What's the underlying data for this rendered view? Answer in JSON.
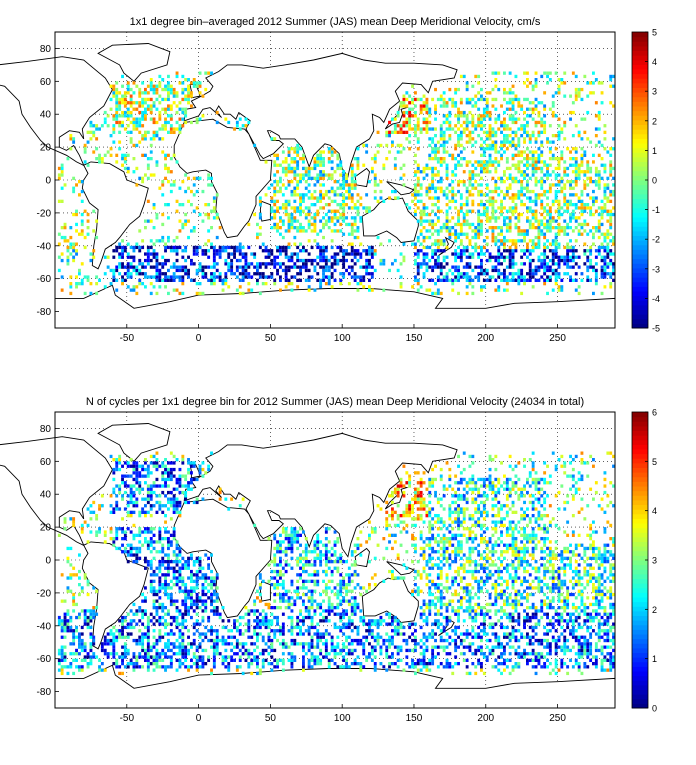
{
  "chart_data": [
    {
      "type": "heatmap",
      "title": "1x1 degree bin–averaged 2012 Summer (JAS) mean Deep Meridional Velocity, cm/s",
      "xlabel": "",
      "ylabel": "",
      "xlim": [
        -100,
        290
      ],
      "ylim": [
        -90,
        90
      ],
      "x_ticks": [
        -50,
        0,
        50,
        100,
        150,
        200,
        250
      ],
      "y_ticks": [
        -80,
        -60,
        -40,
        -20,
        0,
        20,
        40,
        60,
        80
      ],
      "grid": true,
      "colorbar": {
        "min": -5,
        "max": 5,
        "ticks": [
          -5,
          -4,
          -3,
          -2,
          -1,
          0,
          1,
          2,
          3,
          4,
          5
        ],
        "colormap": "jet"
      },
      "regions": [
        {
          "lon": [
            140,
            160
          ],
          "lat": [
            30,
            40
          ],
          "value": 4.5
        },
        {
          "lon": [
            130,
            160
          ],
          "lat": [
            30,
            50
          ],
          "value": 1.5
        },
        {
          "lon": [
            160,
            240
          ],
          "lat": [
            10,
            50
          ],
          "value": 0
        },
        {
          "lon": [
            -60,
            0
          ],
          "lat": [
            30,
            60
          ],
          "value": 0.5
        },
        {
          "lon": [
            20,
            120
          ],
          "lat": [
            -60,
            -40
          ],
          "value": -4
        },
        {
          "lon": [
            150,
            290
          ],
          "lat": [
            -60,
            -40
          ],
          "value": -3
        },
        {
          "lon": [
            -60,
            20
          ],
          "lat": [
            -60,
            -40
          ],
          "value": -3.5
        },
        {
          "lon": [
            150,
            290
          ],
          "lat": [
            -40,
            10
          ],
          "value": 0
        },
        {
          "lon": [
            50,
            110
          ],
          "lat": [
            -30,
            20
          ],
          "value": 0
        }
      ]
    },
    {
      "type": "heatmap",
      "title": "N of cycles per 1x1 degree bin for 2012 Summer (JAS) mean Deep Meridional Velocity (24034 in total)",
      "xlabel": "",
      "ylabel": "",
      "xlim": [
        -100,
        290
      ],
      "ylim": [
        -90,
        90
      ],
      "x_ticks": [
        -50,
        0,
        50,
        100,
        150,
        200,
        250
      ],
      "y_ticks": [
        -80,
        -60,
        -40,
        -20,
        0,
        20,
        40,
        60,
        80
      ],
      "grid": true,
      "colorbar": {
        "min": 0,
        "max": 6,
        "ticks": [
          0,
          1,
          2,
          3,
          4,
          5,
          6
        ],
        "colormap": "jet"
      },
      "regions": [
        {
          "lon": [
            130,
            170
          ],
          "lat": [
            25,
            50
          ],
          "value": 4
        },
        {
          "lon": [
            160,
            240
          ],
          "lat": [
            10,
            50
          ],
          "value": 2.5
        },
        {
          "lon": [
            -60,
            0
          ],
          "lat": [
            30,
            60
          ],
          "value": 1.5
        },
        {
          "lon": [
            -100,
            290
          ],
          "lat": [
            -65,
            -30
          ],
          "value": 1.5
        },
        {
          "lon": [
            -60,
            20
          ],
          "lat": [
            -30,
            20
          ],
          "value": 1.5
        },
        {
          "lon": [
            50,
            110
          ],
          "lat": [
            -30,
            20
          ],
          "value": 2
        },
        {
          "lon": [
            150,
            290
          ],
          "lat": [
            -30,
            10
          ],
          "value": 2.5
        }
      ]
    }
  ]
}
